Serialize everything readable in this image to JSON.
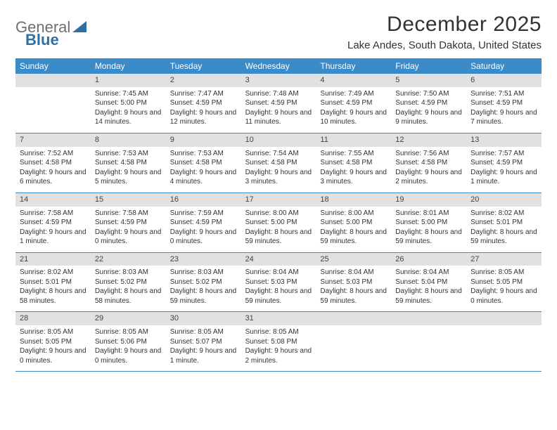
{
  "logo": {
    "word1": "General",
    "word2": "Blue",
    "word2_color": "#2f6fa8",
    "icon_color": "#2f6fa8"
  },
  "title": "December 2025",
  "location": "Lake Andes, South Dakota, United States",
  "colors": {
    "header_bg": "#3b8bc8",
    "daynum_bg": "#e1e1e1",
    "week_border": "#3b8bc8"
  },
  "day_names": [
    "Sunday",
    "Monday",
    "Tuesday",
    "Wednesday",
    "Thursday",
    "Friday",
    "Saturday"
  ],
  "weeks": [
    [
      {
        "n": "",
        "empty": true
      },
      {
        "n": "1",
        "sunrise": "7:45 AM",
        "sunset": "5:00 PM",
        "daylight": "9 hours and 14 minutes."
      },
      {
        "n": "2",
        "sunrise": "7:47 AM",
        "sunset": "4:59 PM",
        "daylight": "9 hours and 12 minutes."
      },
      {
        "n": "3",
        "sunrise": "7:48 AM",
        "sunset": "4:59 PM",
        "daylight": "9 hours and 11 minutes."
      },
      {
        "n": "4",
        "sunrise": "7:49 AM",
        "sunset": "4:59 PM",
        "daylight": "9 hours and 10 minutes."
      },
      {
        "n": "5",
        "sunrise": "7:50 AM",
        "sunset": "4:59 PM",
        "daylight": "9 hours and 9 minutes."
      },
      {
        "n": "6",
        "sunrise": "7:51 AM",
        "sunset": "4:59 PM",
        "daylight": "9 hours and 7 minutes."
      }
    ],
    [
      {
        "n": "7",
        "sunrise": "7:52 AM",
        "sunset": "4:58 PM",
        "daylight": "9 hours and 6 minutes."
      },
      {
        "n": "8",
        "sunrise": "7:53 AM",
        "sunset": "4:58 PM",
        "daylight": "9 hours and 5 minutes."
      },
      {
        "n": "9",
        "sunrise": "7:53 AM",
        "sunset": "4:58 PM",
        "daylight": "9 hours and 4 minutes."
      },
      {
        "n": "10",
        "sunrise": "7:54 AM",
        "sunset": "4:58 PM",
        "daylight": "9 hours and 3 minutes."
      },
      {
        "n": "11",
        "sunrise": "7:55 AM",
        "sunset": "4:58 PM",
        "daylight": "9 hours and 3 minutes."
      },
      {
        "n": "12",
        "sunrise": "7:56 AM",
        "sunset": "4:58 PM",
        "daylight": "9 hours and 2 minutes."
      },
      {
        "n": "13",
        "sunrise": "7:57 AM",
        "sunset": "4:59 PM",
        "daylight": "9 hours and 1 minute."
      }
    ],
    [
      {
        "n": "14",
        "sunrise": "7:58 AM",
        "sunset": "4:59 PM",
        "daylight": "9 hours and 1 minute."
      },
      {
        "n": "15",
        "sunrise": "7:58 AM",
        "sunset": "4:59 PM",
        "daylight": "9 hours and 0 minutes."
      },
      {
        "n": "16",
        "sunrise": "7:59 AM",
        "sunset": "4:59 PM",
        "daylight": "9 hours and 0 minutes."
      },
      {
        "n": "17",
        "sunrise": "8:00 AM",
        "sunset": "5:00 PM",
        "daylight": "8 hours and 59 minutes."
      },
      {
        "n": "18",
        "sunrise": "8:00 AM",
        "sunset": "5:00 PM",
        "daylight": "8 hours and 59 minutes."
      },
      {
        "n": "19",
        "sunrise": "8:01 AM",
        "sunset": "5:00 PM",
        "daylight": "8 hours and 59 minutes."
      },
      {
        "n": "20",
        "sunrise": "8:02 AM",
        "sunset": "5:01 PM",
        "daylight": "8 hours and 59 minutes."
      }
    ],
    [
      {
        "n": "21",
        "sunrise": "8:02 AM",
        "sunset": "5:01 PM",
        "daylight": "8 hours and 58 minutes."
      },
      {
        "n": "22",
        "sunrise": "8:03 AM",
        "sunset": "5:02 PM",
        "daylight": "8 hours and 58 minutes."
      },
      {
        "n": "23",
        "sunrise": "8:03 AM",
        "sunset": "5:02 PM",
        "daylight": "8 hours and 59 minutes."
      },
      {
        "n": "24",
        "sunrise": "8:04 AM",
        "sunset": "5:03 PM",
        "daylight": "8 hours and 59 minutes."
      },
      {
        "n": "25",
        "sunrise": "8:04 AM",
        "sunset": "5:03 PM",
        "daylight": "8 hours and 59 minutes."
      },
      {
        "n": "26",
        "sunrise": "8:04 AM",
        "sunset": "5:04 PM",
        "daylight": "8 hours and 59 minutes."
      },
      {
        "n": "27",
        "sunrise": "8:05 AM",
        "sunset": "5:05 PM",
        "daylight": "9 hours and 0 minutes."
      }
    ],
    [
      {
        "n": "28",
        "sunrise": "8:05 AM",
        "sunset": "5:05 PM",
        "daylight": "9 hours and 0 minutes."
      },
      {
        "n": "29",
        "sunrise": "8:05 AM",
        "sunset": "5:06 PM",
        "daylight": "9 hours and 0 minutes."
      },
      {
        "n": "30",
        "sunrise": "8:05 AM",
        "sunset": "5:07 PM",
        "daylight": "9 hours and 1 minute."
      },
      {
        "n": "31",
        "sunrise": "8:05 AM",
        "sunset": "5:08 PM",
        "daylight": "9 hours and 2 minutes."
      },
      {
        "n": "",
        "empty": true
      },
      {
        "n": "",
        "empty": true
      },
      {
        "n": "",
        "empty": true
      }
    ]
  ],
  "labels": {
    "sunrise": "Sunrise:",
    "sunset": "Sunset:",
    "daylight": "Daylight:"
  }
}
